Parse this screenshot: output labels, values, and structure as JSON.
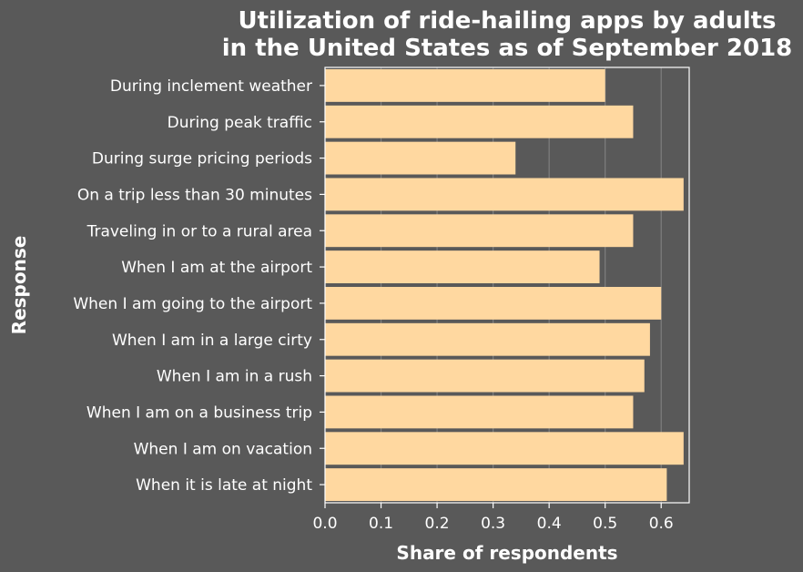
{
  "chart_data": {
    "type": "bar",
    "orientation": "horizontal",
    "title_lines": [
      "Utilization of ride-hailing apps by adults",
      "in the United States as of September 2018"
    ],
    "xlabel": "Share of respondents",
    "ylabel": "Response",
    "xlim": [
      0,
      0.65
    ],
    "xticks": [
      "0.0",
      "0.1",
      "0.2",
      "0.3",
      "0.4",
      "0.5",
      "0.6"
    ],
    "grid": true,
    "categories": [
      "During inclement weather",
      "During peak traffic",
      "During surge pricing periods",
      "On a trip less than 30 minutes",
      "Traveling in or to a rural area",
      "When I am at the airport",
      "When I am going to the airport",
      "When I am in a large cirty",
      "When I am in a rush",
      "When I am on a business trip",
      "When I am on vacation",
      "When it is late at night"
    ],
    "values": [
      0.5,
      0.55,
      0.34,
      0.64,
      0.55,
      0.49,
      0.6,
      0.58,
      0.57,
      0.55,
      0.64,
      0.61
    ],
    "colors": {
      "bar": "#ffd8a0",
      "background": "#595959",
      "text": "#ffffff",
      "grid": "#7f7f7f"
    }
  }
}
